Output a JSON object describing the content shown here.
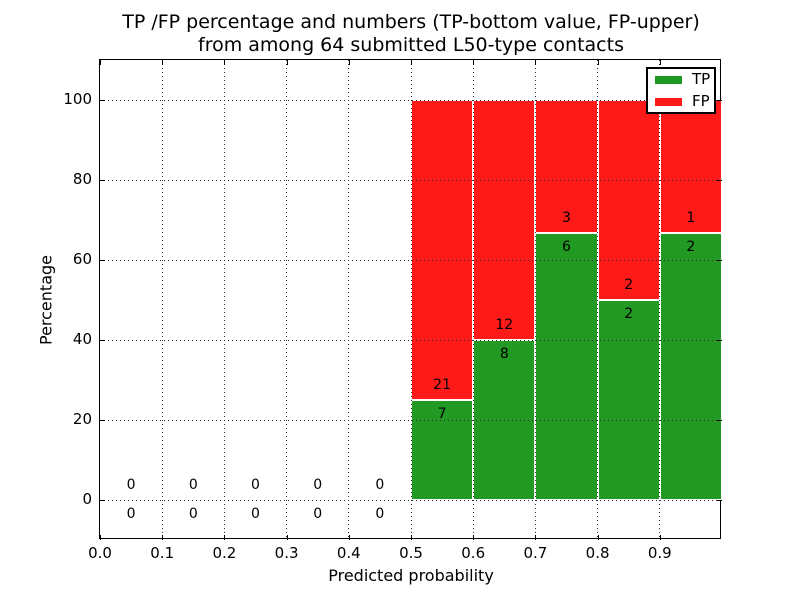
{
  "header": {
    "title_line1": "TP /FP percentage and numbers (TP-bottom value, FP-upper)",
    "title_line2": "from among 64 submitted L50-type contacts"
  },
  "axes": {
    "xlabel": "Predicted probability",
    "ylabel": "Percentage",
    "xtick_labels": [
      "0.0",
      "0.1",
      "0.2",
      "0.3",
      "0.4",
      "0.5",
      "0.6",
      "0.7",
      "0.8",
      "0.9"
    ],
    "ytick_labels": [
      "0",
      "20",
      "40",
      "60",
      "80",
      "100"
    ]
  },
  "legend": {
    "items": [
      {
        "label": "TP",
        "color": "#229922"
      },
      {
        "label": "FP",
        "color": "#ff1a1a"
      }
    ]
  },
  "chart_data": {
    "type": "bar",
    "subtype": "stacked-percentage-histogram",
    "title": "TP /FP percentage and numbers (TP-bottom value, FP-upper) from among 64 submitted L50-type contacts",
    "xlabel": "Predicted probability",
    "ylabel": "Percentage",
    "xlim": [
      0.0,
      1.0
    ],
    "ylim": [
      -10,
      110
    ],
    "xticks": [
      0.0,
      0.1,
      0.2,
      0.3,
      0.4,
      0.5,
      0.6,
      0.7,
      0.8,
      0.9
    ],
    "yticks": [
      0,
      20,
      40,
      60,
      80,
      100
    ],
    "grid": "dotted",
    "legend_position": "upper-right",
    "total_contacts": 64,
    "bin_edges": [
      0.0,
      0.1,
      0.2,
      0.3,
      0.4,
      0.5,
      0.6,
      0.7,
      0.8,
      0.9,
      1.0
    ],
    "series": [
      {
        "name": "TP",
        "color": "#229922",
        "counts": [
          0,
          0,
          0,
          0,
          0,
          7,
          8,
          6,
          2,
          2
        ]
      },
      {
        "name": "FP",
        "color": "#ff1a1a",
        "counts": [
          0,
          0,
          0,
          0,
          0,
          21,
          12,
          3,
          2,
          1
        ]
      }
    ],
    "bar_percentages": {
      "TP": [
        0,
        0,
        0,
        0,
        0,
        25.0,
        40.0,
        66.7,
        50.0,
        66.7
      ],
      "FP": [
        0,
        0,
        0,
        0,
        0,
        75.0,
        60.0,
        33.3,
        50.0,
        33.3
      ]
    }
  }
}
